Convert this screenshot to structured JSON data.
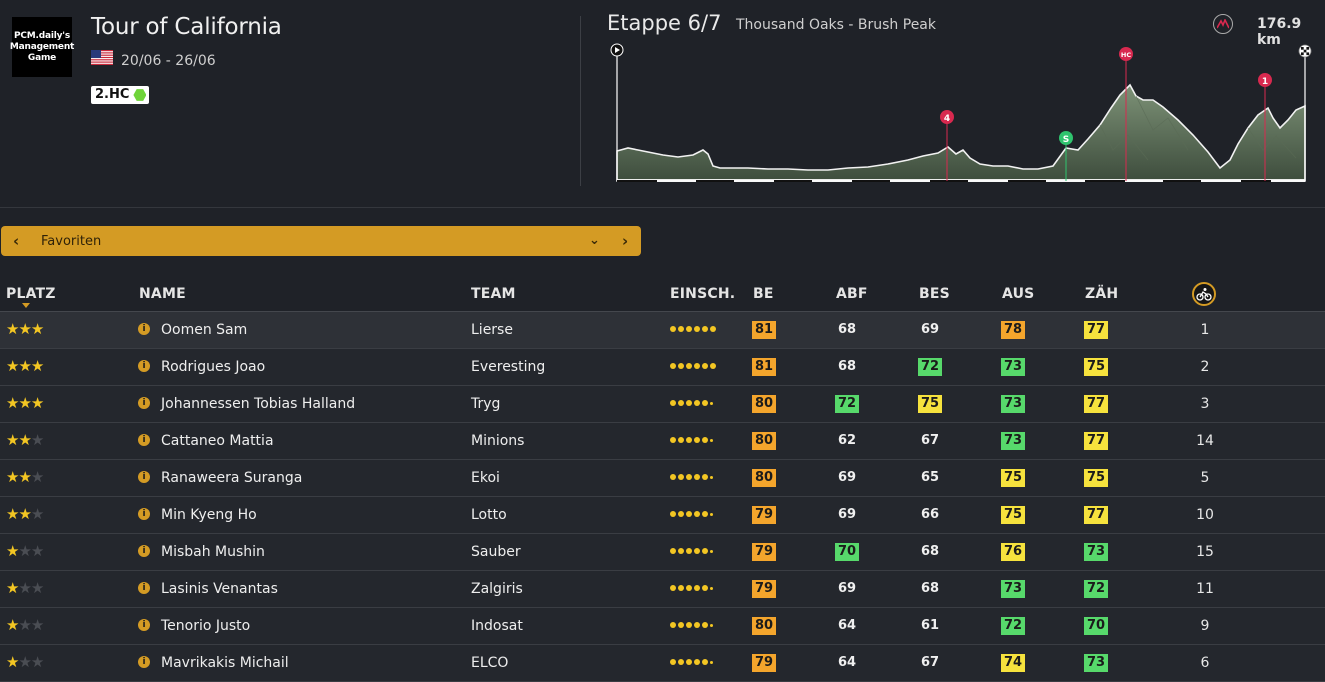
{
  "header": {
    "logo_lines": [
      "PCM.daily's",
      "Management",
      "Game"
    ],
    "race_title": "Tour of California",
    "dates": "20/06 - 26/06",
    "category": "2.HC",
    "stage_label": "Etappe 6/7",
    "stage_route": "Thousand Oaks - Brush Peak",
    "distance": "176.9 km"
  },
  "profile": {
    "markers": [
      {
        "label": "4",
        "color": "#d8294f"
      },
      {
        "label": "S",
        "color": "#2fc46e"
      },
      {
        "label": "HC",
        "color": "#d8294f"
      },
      {
        "label": "1",
        "color": "#d8294f"
      }
    ]
  },
  "filter": {
    "label": "Favoriten"
  },
  "columns": {
    "platz": "PLATZ",
    "name": "NAME",
    "team": "TEAM",
    "einsch": "EINSCH.",
    "be": "BE",
    "abf": "ABF",
    "bes": "BES",
    "aus": "AUS",
    "zah": "ZÄH"
  },
  "colors": {
    "accent": "#d49b24",
    "orange": "#f4a52c",
    "yellow": "#f6e23d",
    "green": "#57d96b"
  },
  "riders": [
    {
      "stars": 3,
      "name": "Oomen Sam",
      "team": "Lierse",
      "dots": 6,
      "be": {
        "v": "81",
        "c": "orange"
      },
      "abf": {
        "v": "68",
        "c": "none"
      },
      "bes": {
        "v": "69",
        "c": "none"
      },
      "aus": {
        "v": "78",
        "c": "orange"
      },
      "zah": {
        "v": "77",
        "c": "yellow"
      },
      "rank": "1"
    },
    {
      "stars": 3,
      "name": "Rodrigues Joao",
      "team": "Everesting",
      "dots": 6,
      "be": {
        "v": "81",
        "c": "orange"
      },
      "abf": {
        "v": "68",
        "c": "none"
      },
      "bes": {
        "v": "72",
        "c": "green"
      },
      "aus": {
        "v": "73",
        "c": "green"
      },
      "zah": {
        "v": "75",
        "c": "yellow"
      },
      "rank": "2"
    },
    {
      "stars": 3,
      "name": "Johannessen Tobias Halland",
      "team": "Tryg",
      "dots": 5,
      "be": {
        "v": "80",
        "c": "orange"
      },
      "abf": {
        "v": "72",
        "c": "green"
      },
      "bes": {
        "v": "75",
        "c": "yellow"
      },
      "aus": {
        "v": "73",
        "c": "green"
      },
      "zah": {
        "v": "77",
        "c": "yellow"
      },
      "rank": "3"
    },
    {
      "stars": 2,
      "name": "Cattaneo Mattia",
      "team": "Minions",
      "dots": 5,
      "be": {
        "v": "80",
        "c": "orange"
      },
      "abf": {
        "v": "62",
        "c": "none"
      },
      "bes": {
        "v": "67",
        "c": "none"
      },
      "aus": {
        "v": "73",
        "c": "green"
      },
      "zah": {
        "v": "77",
        "c": "yellow"
      },
      "rank": "14"
    },
    {
      "stars": 2,
      "name": "Ranaweera Suranga",
      "team": "Ekoi",
      "dots": 5,
      "be": {
        "v": "80",
        "c": "orange"
      },
      "abf": {
        "v": "69",
        "c": "none"
      },
      "bes": {
        "v": "65",
        "c": "none"
      },
      "aus": {
        "v": "75",
        "c": "yellow"
      },
      "zah": {
        "v": "75",
        "c": "yellow"
      },
      "rank": "5"
    },
    {
      "stars": 2,
      "name": "Min Kyeng Ho",
      "team": "Lotto",
      "dots": 5,
      "be": {
        "v": "79",
        "c": "orange"
      },
      "abf": {
        "v": "69",
        "c": "none"
      },
      "bes": {
        "v": "66",
        "c": "none"
      },
      "aus": {
        "v": "75",
        "c": "yellow"
      },
      "zah": {
        "v": "77",
        "c": "yellow"
      },
      "rank": "10"
    },
    {
      "stars": 1,
      "name": "Misbah Mushin",
      "team": "Sauber",
      "dots": 5,
      "be": {
        "v": "79",
        "c": "orange"
      },
      "abf": {
        "v": "70",
        "c": "green"
      },
      "bes": {
        "v": "68",
        "c": "none"
      },
      "aus": {
        "v": "76",
        "c": "yellow"
      },
      "zah": {
        "v": "73",
        "c": "green"
      },
      "rank": "15"
    },
    {
      "stars": 1,
      "name": "Lasinis Venantas",
      "team": "Zalgiris",
      "dots": 5,
      "be": {
        "v": "79",
        "c": "orange"
      },
      "abf": {
        "v": "69",
        "c": "none"
      },
      "bes": {
        "v": "68",
        "c": "none"
      },
      "aus": {
        "v": "73",
        "c": "green"
      },
      "zah": {
        "v": "72",
        "c": "green"
      },
      "rank": "11"
    },
    {
      "stars": 1,
      "name": "Tenorio Justo",
      "team": "Indosat",
      "dots": 5,
      "be": {
        "v": "80",
        "c": "orange"
      },
      "abf": {
        "v": "64",
        "c": "none"
      },
      "bes": {
        "v": "61",
        "c": "none"
      },
      "aus": {
        "v": "72",
        "c": "green"
      },
      "zah": {
        "v": "70",
        "c": "green"
      },
      "rank": "9"
    },
    {
      "stars": 1,
      "name": "Mavrikakis Michail",
      "team": "ELCO",
      "dots": 5,
      "be": {
        "v": "79",
        "c": "orange"
      },
      "abf": {
        "v": "64",
        "c": "none"
      },
      "bes": {
        "v": "67",
        "c": "none"
      },
      "aus": {
        "v": "74",
        "c": "yellow"
      },
      "zah": {
        "v": "73",
        "c": "green"
      },
      "rank": "6"
    }
  ]
}
